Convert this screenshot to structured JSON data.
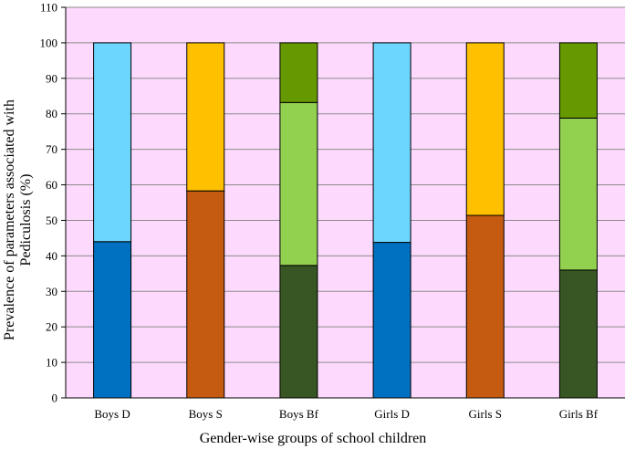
{
  "chart_data": {
    "type": "bar",
    "stacked": true,
    "title": "",
    "xlabel": "Gender-wise groups of school children",
    "ylabel_lines": [
      "Prevalence of parameters associated with",
      "Pediculosis (%)"
    ],
    "ylim": [
      0,
      110
    ],
    "yticks": [
      0,
      10,
      20,
      30,
      40,
      50,
      60,
      70,
      80,
      90,
      100,
      110
    ],
    "grid": true,
    "legend": "none",
    "plot_background": "#FDD9FD",
    "grid_color": "#8C8C8C",
    "categories": [
      "Boys D",
      "Boys S",
      "Boys Bf",
      "Girls D",
      "Girls S",
      "Girls Bf"
    ],
    "bars": [
      {
        "segments": [
          {
            "value": 44,
            "color": "#0070C0"
          },
          {
            "value": 56,
            "color": "#6DD6FF"
          }
        ]
      },
      {
        "segments": [
          {
            "value": 58.3,
            "color": "#C55A11"
          },
          {
            "value": 41.7,
            "color": "#FFC000"
          }
        ]
      },
      {
        "segments": [
          {
            "value": 37.3,
            "color": "#375623"
          },
          {
            "value": 45.9,
            "color": "#92D050"
          },
          {
            "value": 16.8,
            "color": "#669900"
          }
        ]
      },
      {
        "segments": [
          {
            "value": 43.8,
            "color": "#0070C0"
          },
          {
            "value": 56.2,
            "color": "#6DD6FF"
          }
        ]
      },
      {
        "segments": [
          {
            "value": 51.4,
            "color": "#C55A11"
          },
          {
            "value": 48.6,
            "color": "#FFC000"
          }
        ]
      },
      {
        "segments": [
          {
            "value": 36,
            "color": "#375623"
          },
          {
            "value": 42.8,
            "color": "#92D050"
          },
          {
            "value": 21.2,
            "color": "#669900"
          }
        ]
      }
    ]
  }
}
